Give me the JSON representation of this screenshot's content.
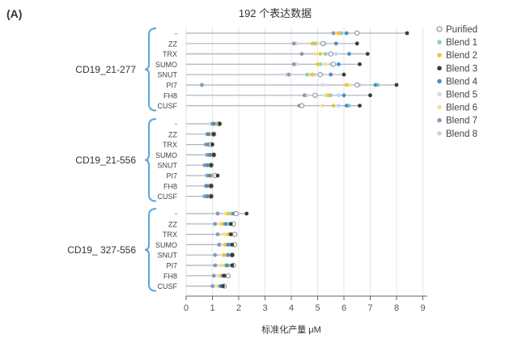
{
  "panel_label": "(A)",
  "chart_data": {
    "type": "scatter",
    "title": "192 个表达数据",
    "xlabel": "标准化产量 μM",
    "ylabel": "",
    "xlim": [
      0,
      9.2
    ],
    "xticks": [
      0,
      1,
      2,
      3,
      4,
      5,
      6,
      7,
      8,
      9
    ],
    "grid": "vertical",
    "legend_position": "right",
    "tags": [
      "-",
      "ZZ",
      "TRX",
      "SUMO",
      "SNUT",
      "PI7",
      "FH8",
      "CUSF"
    ],
    "series": [
      {
        "name": "Purified",
        "color": "#9a9a9a",
        "marker": "hollow"
      },
      {
        "name": "Blend 1",
        "color": "#8ecfc3",
        "marker": "filled"
      },
      {
        "name": "Blend 2",
        "color": "#f2c23a",
        "marker": "filled"
      },
      {
        "name": "Blend 3",
        "color": "#3a3a3a",
        "marker": "filled"
      },
      {
        "name": "Blend 4",
        "color": "#4a8fc4",
        "marker": "filled"
      },
      {
        "name": "Blend 5",
        "color": "#dcd8e6",
        "marker": "filled"
      },
      {
        "name": "Blend 6",
        "color": "#f5e08a",
        "marker": "filled"
      },
      {
        "name": "Blend 7",
        "color": "#8d97b8",
        "marker": "filled"
      },
      {
        "name": "Blend 8",
        "color": "#bdd6ee",
        "marker": "filled"
      }
    ],
    "groups": [
      {
        "name": "CD19_21-277",
        "rows": [
          {
            "tag": "-",
            "values": [
              6.5,
              5.9,
              5.8,
              8.4,
              6.1,
              5.6,
              5.7,
              5.6,
              5.9
            ]
          },
          {
            "tag": "ZZ",
            "values": [
              5.2,
              4.9,
              4.8,
              6.5,
              5.7,
              4.2,
              5.0,
              4.1,
              5.3
            ]
          },
          {
            "tag": "TRX",
            "values": [
              5.5,
              5.3,
              5.1,
              6.9,
              6.2,
              4.4,
              4.9,
              4.4,
              5.7
            ]
          },
          {
            "tag": "SUMO",
            "values": [
              5.6,
              5.1,
              5.0,
              6.6,
              5.8,
              4.2,
              5.3,
              4.1,
              5.5
            ]
          },
          {
            "tag": "SNUT",
            "values": [
              5.1,
              4.6,
              4.8,
              6.0,
              5.5,
              3.8,
              4.7,
              3.9,
              4.9
            ]
          },
          {
            "tag": "PI7",
            "values": [
              6.5,
              7.3,
              6.1,
              8.0,
              7.2,
              5.2,
              6.2,
              0.6,
              6.6
            ]
          },
          {
            "tag": "FH8",
            "values": [
              4.9,
              5.5,
              5.4,
              7.0,
              6.0,
              4.6,
              5.3,
              4.5,
              5.8
            ]
          },
          {
            "tag": "CUSF",
            "values": [
              4.4,
              6.2,
              5.6,
              6.6,
              6.1,
              4.4,
              5.2,
              4.3,
              5.8
            ]
          }
        ]
      },
      {
        "name": "CD19_21-556",
        "rows": [
          {
            "tag": "-",
            "values": [
              1.25,
              1.1,
              1.15,
              1.28,
              1.05,
              0.95,
              1.0,
              1.0,
              1.2
            ]
          },
          {
            "tag": "ZZ",
            "values": [
              1.05,
              0.95,
              0.9,
              1.05,
              0.85,
              0.8,
              0.85,
              0.8,
              0.95
            ]
          },
          {
            "tag": "TRX",
            "values": [
              0.95,
              0.9,
              0.85,
              1.0,
              0.85,
              0.75,
              0.8,
              0.75,
              0.9
            ]
          },
          {
            "tag": "SUMO",
            "values": [
              1.05,
              0.95,
              0.9,
              1.05,
              0.9,
              0.8,
              0.85,
              0.8,
              0.95
            ]
          },
          {
            "tag": "SNUT",
            "values": [
              0.95,
              0.85,
              0.8,
              0.95,
              0.8,
              0.7,
              0.75,
              0.7,
              0.85
            ]
          },
          {
            "tag": "PI7",
            "values": [
              1.1,
              1.0,
              0.95,
              1.2,
              0.9,
              0.8,
              0.85,
              0.8,
              1.0
            ]
          },
          {
            "tag": "FH8",
            "values": [
              0.95,
              0.9,
              0.85,
              0.95,
              0.8,
              0.75,
              0.8,
              0.75,
              0.9
            ]
          },
          {
            "tag": "CUSF",
            "values": [
              0.95,
              0.85,
              0.8,
              0.95,
              0.8,
              0.7,
              0.75,
              0.7,
              0.85
            ]
          }
        ]
      },
      {
        "name": "CD19_ 327-556",
        "rows": [
          {
            "tag": "-",
            "values": [
              1.9,
              1.7,
              1.6,
              2.3,
              1.8,
              1.2,
              1.5,
              1.2,
              1.85
            ]
          },
          {
            "tag": "ZZ",
            "values": [
              1.8,
              1.6,
              1.4,
              1.7,
              1.5,
              1.1,
              1.3,
              1.1,
              1.6
            ]
          },
          {
            "tag": "TRX",
            "values": [
              1.85,
              1.75,
              1.6,
              1.7,
              1.8,
              1.2,
              1.45,
              1.2,
              1.7
            ]
          },
          {
            "tag": "SUMO",
            "values": [
              1.85,
              1.65,
              1.5,
              1.75,
              1.6,
              1.3,
              1.45,
              1.25,
              1.7
            ]
          },
          {
            "tag": "SNUT",
            "values": [
              1.75,
              1.55,
              1.45,
              1.75,
              1.6,
              1.1,
              1.4,
              1.1,
              1.6
            ]
          },
          {
            "tag": "PI7",
            "values": [
              1.8,
              1.6,
              1.5,
              1.75,
              1.55,
              1.15,
              1.35,
              1.1,
              1.65
            ]
          },
          {
            "tag": "FH8",
            "values": [
              1.6,
              1.5,
              1.35,
              1.45,
              1.4,
              1.1,
              1.25,
              1.05,
              1.5
            ]
          },
          {
            "tag": "CUSF",
            "values": [
              1.45,
              1.35,
              1.45,
              1.4,
              1.3,
              1.05,
              1.2,
              1.0,
              1.4
            ]
          }
        ]
      }
    ]
  }
}
